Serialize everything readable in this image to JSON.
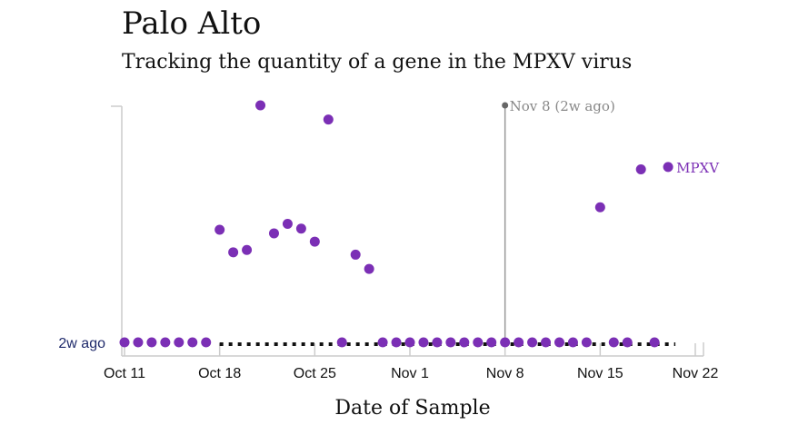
{
  "header": {
    "title": "Palo Alto",
    "subtitle": "Tracking the quantity of a gene in the MPXV virus"
  },
  "chart_data": {
    "type": "scatter",
    "title": "Palo Alto",
    "subtitle": "Tracking the quantity of a gene in the MPXV virus",
    "xlabel": "Date of Sample",
    "ylabel": "",
    "x_ticks": [
      "Oct 11",
      "Oct 18",
      "Oct 25",
      "Nov 1",
      "Nov 8",
      "Nov 15",
      "Nov 22"
    ],
    "y_ticks": [
      "2w ago"
    ],
    "xlim": [
      "2022-10-11",
      "2022-11-22"
    ],
    "ylim": [
      0,
      100
    ],
    "y_tick_values": [
      0
    ],
    "grid": false,
    "colors": {
      "series": "#7b2fb5",
      "annotation": "#888888",
      "axis": "#cccccc",
      "ytick": "#1f2a6b"
    },
    "annotation": {
      "x": "2022-11-08",
      "label": "Nov 8 (2w ago)"
    },
    "series": [
      {
        "name": "MPXV",
        "x": [
          "2022-10-11",
          "2022-10-12",
          "2022-10-13",
          "2022-10-14",
          "2022-10-15",
          "2022-10-16",
          "2022-10-17",
          "2022-10-18",
          "2022-10-19",
          "2022-10-20",
          "2022-10-21",
          "2022-10-22",
          "2022-10-23",
          "2022-10-24",
          "2022-10-25",
          "2022-10-26",
          "2022-10-27",
          "2022-10-28",
          "2022-10-29",
          "2022-10-30",
          "2022-10-31",
          "2022-11-01",
          "2022-11-02",
          "2022-11-03",
          "2022-11-04",
          "2022-11-05",
          "2022-11-06",
          "2022-11-07",
          "2022-11-08",
          "2022-11-09",
          "2022-11-10",
          "2022-11-11",
          "2022-11-12",
          "2022-11-13",
          "2022-11-14",
          "2022-11-15",
          "2022-11-16",
          "2022-11-17",
          "2022-11-18",
          "2022-11-19",
          "2022-11-20"
        ],
        "y": [
          0,
          0,
          0,
          0,
          0,
          0,
          0,
          47.5,
          38,
          39,
          100,
          46,
          50,
          48,
          42.5,
          94,
          0,
          37,
          31,
          0,
          0,
          0,
          0,
          0,
          0,
          0,
          0,
          0,
          0,
          0,
          0,
          0,
          0,
          0,
          0,
          57,
          0,
          0,
          73,
          0,
          74
        ]
      }
    ],
    "zero_line": {
      "x_start": "2022-10-18",
      "x_end": "2022-11-20",
      "style": "dotted",
      "color": "#111111"
    }
  }
}
